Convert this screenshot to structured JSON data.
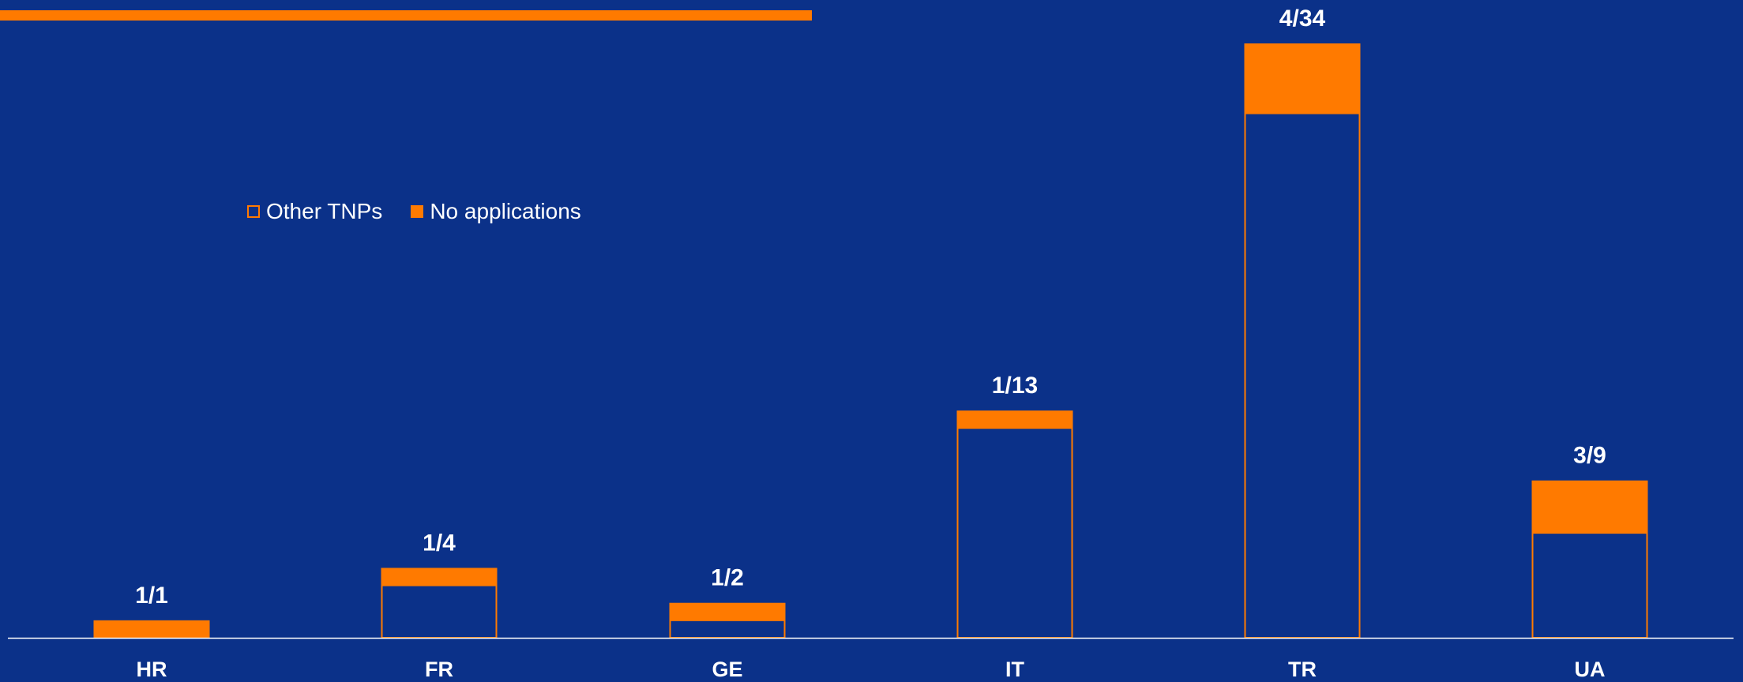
{
  "colors": {
    "background": "#0b3189",
    "accent": "#ff7a00",
    "axis": "#ffffff",
    "text": "#ffffff"
  },
  "legend": {
    "items": [
      {
        "label": "Other TNPs",
        "style": "outline"
      },
      {
        "label": "No applications",
        "style": "filled"
      }
    ]
  },
  "chart_data": {
    "type": "bar",
    "stacked": true,
    "categories": [
      "HR",
      "FR",
      "GE",
      "IT",
      "TR",
      "UA"
    ],
    "series": [
      {
        "name": "No applications",
        "values": [
          1,
          1,
          1,
          1,
          4,
          3
        ]
      },
      {
        "name": "Other TNPs",
        "values": [
          0,
          3,
          1,
          12,
          30,
          6
        ]
      }
    ],
    "totals": [
      1,
      4,
      2,
      13,
      34,
      9
    ],
    "data_labels": [
      "1/1",
      "1/4",
      "1/2",
      "1/13",
      "4/34",
      "3/9"
    ],
    "ylim": [
      0,
      34
    ],
    "grid": false,
    "legend_position": "top-left"
  }
}
